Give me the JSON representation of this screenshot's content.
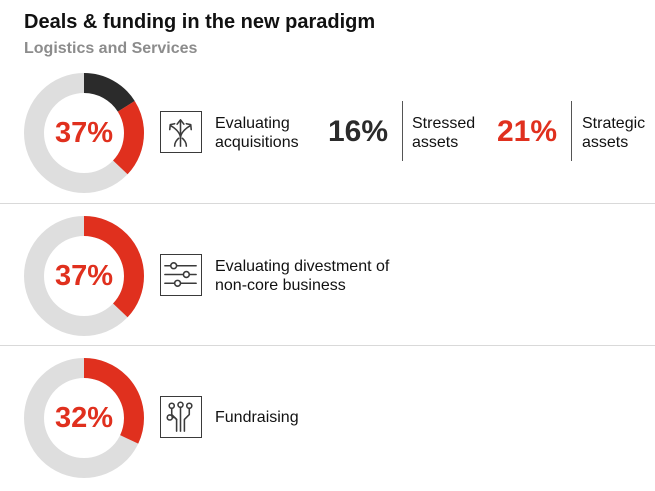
{
  "title": "Deals & funding in the new paradigm",
  "subtitle": "Logistics and Services",
  "colors": {
    "accent": "#e0301e",
    "dark": "#2b2b2b",
    "track": "#dedede"
  },
  "rows": [
    {
      "percent_label": "37%",
      "icon": "arrows-diverge-icon",
      "label_lines": [
        "Evaluating",
        "acquisitions"
      ],
      "stats": [
        {
          "value_label": "16%",
          "label_lines": [
            "Stressed",
            "assets"
          ],
          "color": "dark"
        },
        {
          "value_label": "21%",
          "label_lines": [
            "Strategic",
            "assets"
          ],
          "color": "red"
        }
      ]
    },
    {
      "percent_label": "37%",
      "icon": "sliders-icon",
      "label_lines": [
        "Evaluating divestment of",
        "non-core business"
      ]
    },
    {
      "percent_label": "32%",
      "icon": "circuit-icon",
      "label_lines": [
        "Fundraising"
      ]
    }
  ],
  "chart_data": {
    "type": "pie",
    "title": "Deals & funding in the new paradigm",
    "subtitle": "Logistics and Services",
    "donuts": [
      {
        "label": "Evaluating acquisitions",
        "total": 37,
        "segments": [
          {
            "name": "Stressed assets",
            "value": 16,
            "color": "#2b2b2b"
          },
          {
            "name": "Strategic assets",
            "value": 21,
            "color": "#e0301e"
          }
        ]
      },
      {
        "label": "Evaluating divestment of non-core business",
        "total": 37,
        "segments": [
          {
            "value": 37,
            "color": "#e0301e"
          }
        ]
      },
      {
        "label": "Fundraising",
        "total": 32,
        "segments": [
          {
            "value": 32,
            "color": "#e0301e"
          }
        ]
      }
    ]
  }
}
